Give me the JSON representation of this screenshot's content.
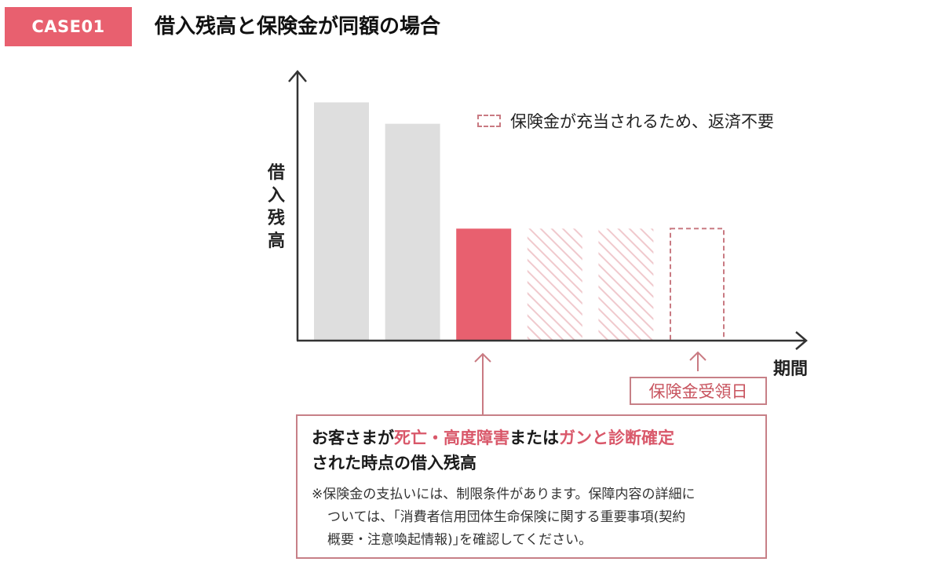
{
  "header": {
    "badge": "CASE01",
    "title": "借入残高と保険金が同額の場合"
  },
  "legend": {
    "label": "保険金が充当されるため、返済不要"
  },
  "callout": {
    "date_label": "保険金受領日",
    "line1_prefix": "お客さまが",
    "line1_highlight1": "死亡・高度障害",
    "line1_mid": "または",
    "line1_highlight2": "ガンと診断確定",
    "line2": "された時点の借入残高",
    "footnote_line1": "※保険金の支払いには、制限条件があります。保障内容の詳細に",
    "footnote_line2": "ついては、｢消費者信用団体生命保険に関する重要事項(契約",
    "footnote_line3": "概要・注意喚起情報)｣を確認してください。"
  },
  "colors": {
    "accent": "#e8606f",
    "bar_gray": "#dedede",
    "hatch": "#f0c9cd",
    "outline": "#c97a82"
  },
  "chart_data": {
    "type": "bar",
    "xlabel": "期間",
    "ylabel": "借入残高",
    "categories": [
      "",
      "",
      "",
      "",
      "",
      ""
    ],
    "values": [
      100,
      91,
      47,
      47,
      47,
      47
    ],
    "styles": [
      "gray",
      "gray",
      "accent",
      "hatched",
      "hatched",
      "dashed-outline"
    ],
    "ylim": [
      0,
      110
    ],
    "grid": false,
    "legend": "top-right"
  }
}
